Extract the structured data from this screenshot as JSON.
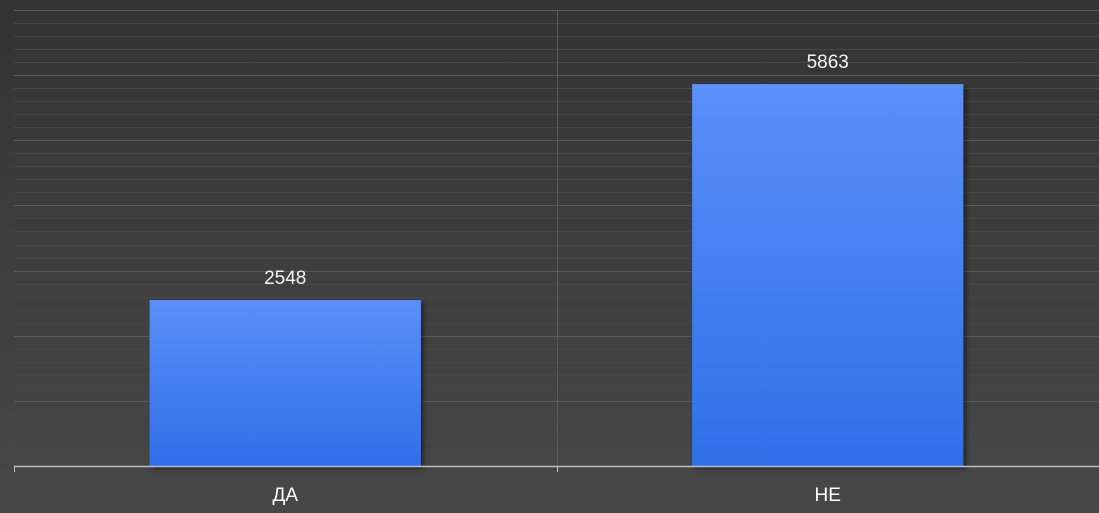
{
  "chart_data": {
    "type": "bar",
    "categories": [
      "ДА",
      "НЕ"
    ],
    "values": [
      2548,
      5863
    ],
    "data_labels": [
      "2548",
      "5863"
    ],
    "ylim": [
      0,
      7000
    ],
    "grid": true,
    "legend": "none",
    "colors": {
      "bar_top": "#5b8ff9",
      "bar_bottom": "#2f6fe8",
      "gridline_major": "#5a5a5a",
      "gridline_minor": "#474747",
      "axis": "#bdbdbd",
      "text": "#ffffff"
    }
  }
}
